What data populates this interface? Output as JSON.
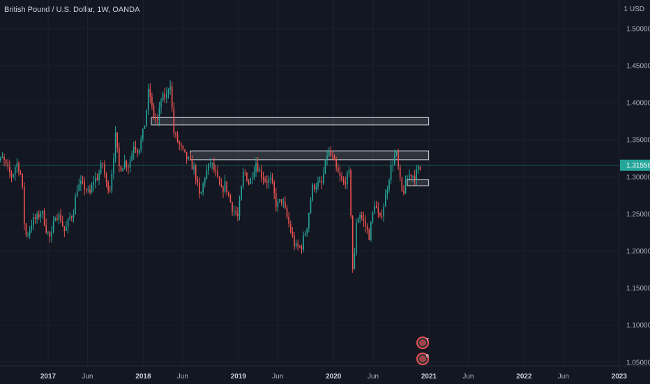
{
  "header": {
    "title": "British Pound / U.S. Dollar, 1W, OANDA",
    "currency": "1 USD"
  },
  "colors": {
    "background": "#131722",
    "grid": "#1e2230",
    "axis_text": "#b2b5be",
    "up": "#26a69a",
    "down": "#ef5350",
    "last_price": "#26a69a",
    "zone_fill": "#ffffff",
    "zone_stroke": "#d1d4dc"
  },
  "chart_data": {
    "type": "candlestick",
    "symbol": "British Pound / U.S. Dollar",
    "timeframe": "1W",
    "source": "OANDA",
    "last_price": "1.31558",
    "ylim": [
      1.03,
      1.53
    ],
    "y_ticks": [
      "1.50000",
      "1.45000",
      "1.40000",
      "1.35000",
      "1.30000",
      "1.25000",
      "1.20000",
      "1.15000",
      "1.10000",
      "1.05000"
    ],
    "x_ticks": [
      {
        "label": "2017",
        "date": "2017-01-01",
        "major": true
      },
      {
        "label": "Jun",
        "date": "2017-06-01",
        "major": false
      },
      {
        "label": "2018",
        "date": "2018-01-01",
        "major": true
      },
      {
        "label": "Jun",
        "date": "2018-06-01",
        "major": false
      },
      {
        "label": "2019",
        "date": "2019-01-01",
        "major": true
      },
      {
        "label": "Jun",
        "date": "2019-06-01",
        "major": false
      },
      {
        "label": "2020",
        "date": "2020-01-01",
        "major": true
      },
      {
        "label": "Jun",
        "date": "2020-06-01",
        "major": false
      },
      {
        "label": "2021",
        "date": "2021-01-01",
        "major": true
      },
      {
        "label": "Jun",
        "date": "2021-06-01",
        "major": false
      },
      {
        "label": "2022",
        "date": "2022-01-01",
        "major": true
      },
      {
        "label": "Jun",
        "date": "2022-06-01",
        "major": false
      },
      {
        "label": "2023",
        "date": "2023-01-01",
        "major": true
      }
    ],
    "price_path": [
      [
        "2016-06-01",
        1.335
      ],
      [
        "2016-06-22",
        1.33
      ],
      [
        "2016-07-01",
        1.32
      ],
      [
        "2016-07-15",
        1.325
      ],
      [
        "2016-08-01",
        1.31
      ],
      [
        "2016-08-20",
        1.3
      ],
      [
        "2016-09-05",
        1.32
      ],
      [
        "2016-09-25",
        1.3
      ],
      [
        "2016-10-08",
        1.22
      ],
      [
        "2016-10-20",
        1.225
      ],
      [
        "2016-11-05",
        1.24
      ],
      [
        "2016-11-25",
        1.245
      ],
      [
        "2016-12-10",
        1.255
      ],
      [
        "2016-12-28",
        1.23
      ],
      [
        "2017-01-15",
        1.215
      ],
      [
        "2017-02-01",
        1.25
      ],
      [
        "2017-02-20",
        1.245
      ],
      [
        "2017-03-10",
        1.225
      ],
      [
        "2017-03-28",
        1.245
      ],
      [
        "2017-04-10",
        1.25
      ],
      [
        "2017-04-25",
        1.285
      ],
      [
        "2017-05-10",
        1.29
      ],
      [
        "2017-05-28",
        1.285
      ],
      [
        "2017-06-12",
        1.275
      ],
      [
        "2017-06-28",
        1.295
      ],
      [
        "2017-07-15",
        1.3
      ],
      [
        "2017-08-01",
        1.32
      ],
      [
        "2017-08-15",
        1.29
      ],
      [
        "2017-08-30",
        1.285
      ],
      [
        "2017-09-10",
        1.32
      ],
      [
        "2017-09-20",
        1.355
      ],
      [
        "2017-10-05",
        1.31
      ],
      [
        "2017-10-25",
        1.32
      ],
      [
        "2017-11-10",
        1.315
      ],
      [
        "2017-11-30",
        1.345
      ],
      [
        "2017-12-15",
        1.335
      ],
      [
        "2018-01-01",
        1.355
      ],
      [
        "2018-01-12",
        1.375
      ],
      [
        "2018-01-26",
        1.42
      ],
      [
        "2018-02-10",
        1.385
      ],
      [
        "2018-02-28",
        1.375
      ],
      [
        "2018-03-15",
        1.405
      ],
      [
        "2018-04-05",
        1.41
      ],
      [
        "2018-04-17",
        1.432
      ],
      [
        "2018-05-01",
        1.36
      ],
      [
        "2018-05-20",
        1.345
      ],
      [
        "2018-06-10",
        1.33
      ],
      [
        "2018-06-30",
        1.32
      ],
      [
        "2018-07-20",
        1.31
      ],
      [
        "2018-08-10",
        1.27
      ],
      [
        "2018-08-28",
        1.3
      ],
      [
        "2018-09-20",
        1.32
      ],
      [
        "2018-10-08",
        1.305
      ],
      [
        "2018-10-30",
        1.28
      ],
      [
        "2018-11-15",
        1.29
      ],
      [
        "2018-12-10",
        1.26
      ],
      [
        "2019-01-03",
        1.245
      ],
      [
        "2019-01-25",
        1.31
      ],
      [
        "2019-02-15",
        1.29
      ],
      [
        "2019-03-12",
        1.32
      ],
      [
        "2019-03-30",
        1.305
      ],
      [
        "2019-04-20",
        1.295
      ],
      [
        "2019-05-10",
        1.295
      ],
      [
        "2019-05-31",
        1.26
      ],
      [
        "2019-06-20",
        1.27
      ],
      [
        "2019-07-10",
        1.245
      ],
      [
        "2019-08-10",
        1.205
      ],
      [
        "2019-09-03",
        1.205
      ],
      [
        "2019-09-25",
        1.235
      ],
      [
        "2019-10-15",
        1.285
      ],
      [
        "2019-10-30",
        1.29
      ],
      [
        "2019-11-20",
        1.29
      ],
      [
        "2019-12-13",
        1.335
      ],
      [
        "2019-12-31",
        1.325
      ],
      [
        "2020-01-20",
        1.305
      ],
      [
        "2020-02-10",
        1.29
      ],
      [
        "2020-03-06",
        1.305
      ],
      [
        "2020-03-20",
        1.155
      ],
      [
        "2020-03-31",
        1.24
      ],
      [
        "2020-04-15",
        1.25
      ],
      [
        "2020-05-05",
        1.235
      ],
      [
        "2020-05-20",
        1.22
      ],
      [
        "2020-06-10",
        1.265
      ],
      [
        "2020-06-30",
        1.24
      ],
      [
        "2020-07-20",
        1.27
      ],
      [
        "2020-08-10",
        1.31
      ],
      [
        "2020-08-31",
        1.335
      ],
      [
        "2020-09-15",
        1.295
      ],
      [
        "2020-09-25",
        1.275
      ],
      [
        "2020-10-10",
        1.295
      ],
      [
        "2020-10-25",
        1.305
      ],
      [
        "2020-11-10",
        1.3
      ],
      [
        "2020-11-25",
        1.31
      ]
    ],
    "zones": [
      {
        "name": "resistance-zone-upper",
        "from": "2018-02-01",
        "to": "2020-12-31",
        "top": 1.38,
        "bottom": 1.37
      },
      {
        "name": "resistance-zone-middle",
        "from": "2018-07-01",
        "to": "2020-12-31",
        "top": 1.335,
        "bottom": 1.323
      },
      {
        "name": "support-zone-lower",
        "from": "2020-10-10",
        "to": "2020-12-31",
        "top": 1.296,
        "bottom": 1.288
      }
    ],
    "events": [
      {
        "name": "event-marker-uk",
        "count": "7",
        "date": "2020-12-08",
        "color": "#ef5350"
      },
      {
        "name": "event-marker-us",
        "count": "6",
        "date": "2020-12-08",
        "color": "#ef5350"
      }
    ]
  }
}
